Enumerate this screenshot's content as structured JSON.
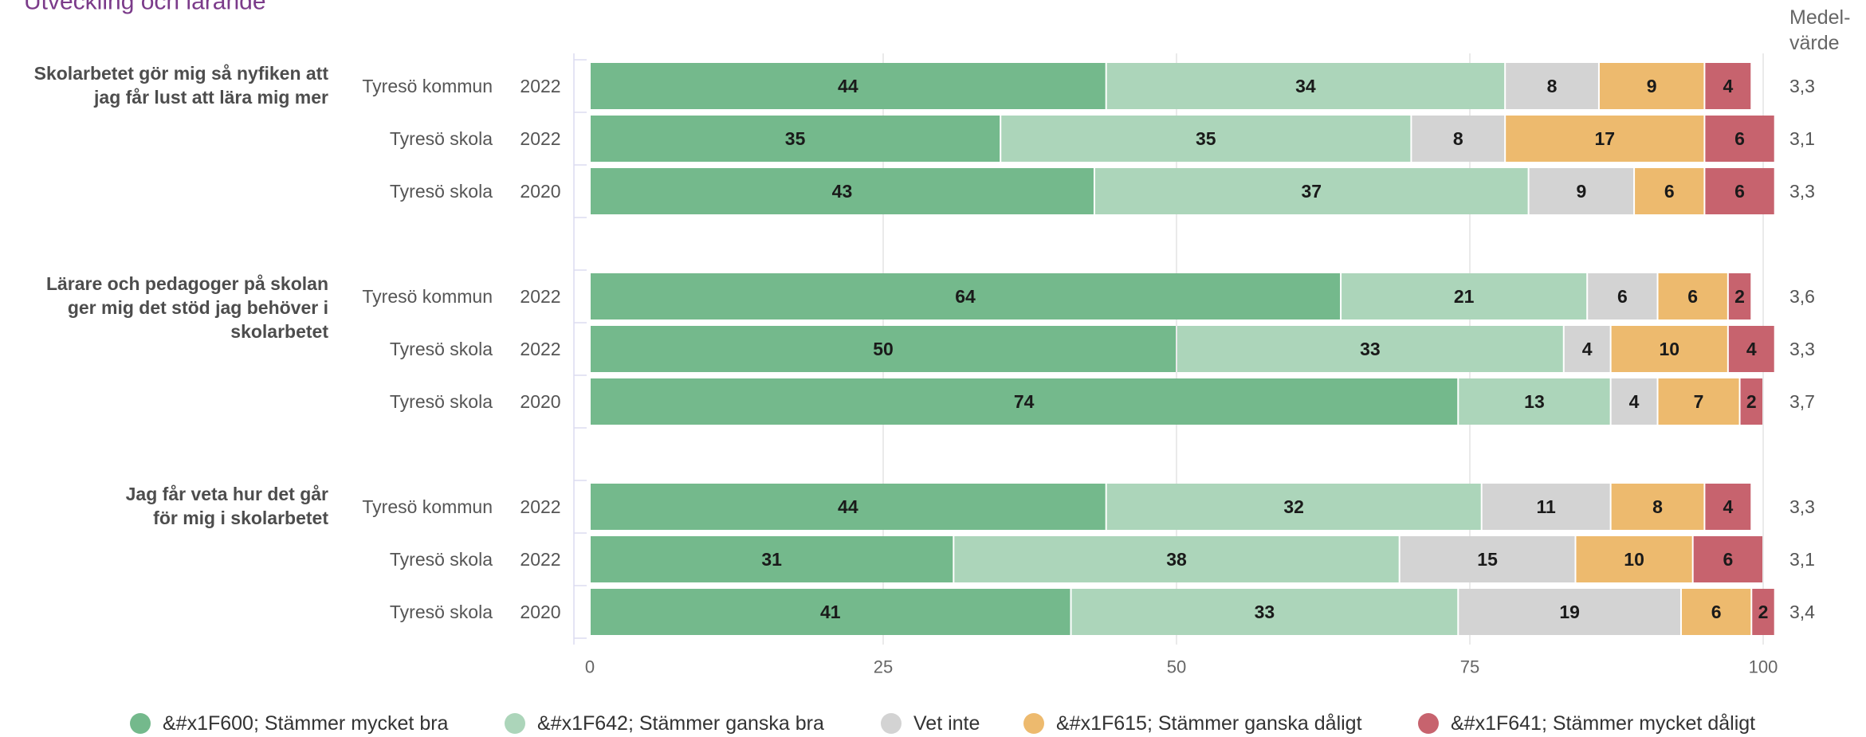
{
  "chart_data": {
    "type": "bar",
    "orientation": "horizontal",
    "stacked": true,
    "title": "Utveckling och lärande",
    "mean_header": [
      "Medel-",
      "värde"
    ],
    "xlim": [
      0,
      100
    ],
    "x_ticks": [
      0,
      25,
      50,
      75,
      100
    ],
    "grid": true,
    "legend_position": "bottom",
    "series": [
      {
        "name": "&#x1F600; Stämmer mycket bra",
        "color": "#74b98c"
      },
      {
        "name": "&#x1F642; Stämmer ganska bra",
        "color": "#acd5ba"
      },
      {
        "name": "Vet inte",
        "color": "#d3d3d3"
      },
      {
        "name": "&#x1F615; Stämmer ganska dåligt",
        "color": "#edba6e"
      },
      {
        "name": "&#x1F641; Stämmer mycket dåligt",
        "color": "#c7636e"
      }
    ],
    "groups": [
      {
        "question": [
          "Skolarbetet gör mig så nyfiken att",
          "jag får lust att lära mig mer"
        ],
        "rows": [
          {
            "unit": "Tyresö kommun",
            "year": "2022",
            "values": [
              44,
              34,
              8,
              9,
              4
            ],
            "mean": "3,3"
          },
          {
            "unit": "Tyresö skola",
            "year": "2022",
            "values": [
              35,
              35,
              8,
              17,
              6
            ],
            "mean": "3,1"
          },
          {
            "unit": "Tyresö skola",
            "year": "2020",
            "values": [
              43,
              37,
              9,
              6,
              6
            ],
            "mean": "3,3"
          }
        ]
      },
      {
        "question": [
          "Lärare och pedagoger på skolan",
          "ger mig det stöd jag behöver i",
          "skolarbetet"
        ],
        "rows": [
          {
            "unit": "Tyresö kommun",
            "year": "2022",
            "values": [
              64,
              21,
              6,
              6,
              2
            ],
            "mean": "3,6"
          },
          {
            "unit": "Tyresö skola",
            "year": "2022",
            "values": [
              50,
              33,
              4,
              10,
              4
            ],
            "mean": "3,3"
          },
          {
            "unit": "Tyresö skola",
            "year": "2020",
            "values": [
              74,
              13,
              4,
              7,
              2
            ],
            "mean": "3,7"
          }
        ]
      },
      {
        "question": [
          "Jag får veta hur det går",
          "för mig i skolarbetet"
        ],
        "rows": [
          {
            "unit": "Tyresö kommun",
            "year": "2022",
            "values": [
              44,
              32,
              11,
              8,
              4
            ],
            "mean": "3,3"
          },
          {
            "unit": "Tyresö skola",
            "year": "2022",
            "values": [
              31,
              38,
              15,
              10,
              6
            ],
            "mean": "3,1"
          },
          {
            "unit": "Tyresö skola",
            "year": "2020",
            "values": [
              41,
              33,
              19,
              6,
              2
            ],
            "mean": "3,4"
          }
        ]
      }
    ]
  }
}
